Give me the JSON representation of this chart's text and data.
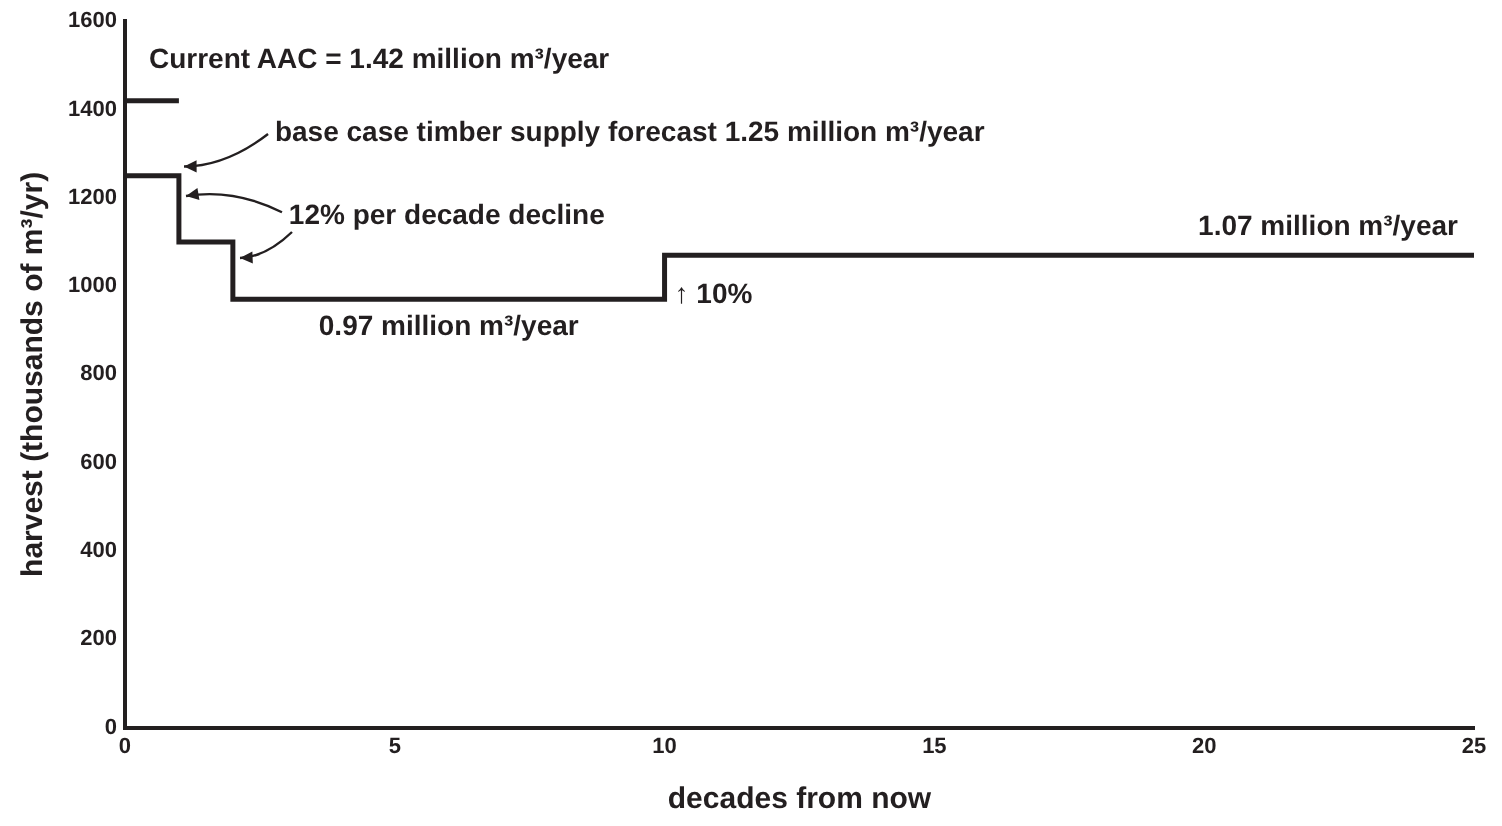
{
  "chart_data": {
    "type": "step",
    "xlabel": "decades from now",
    "ylabel": "harvest (thousands of m³/yr)",
    "xlim": [
      0,
      25
    ],
    "xticks": [
      0,
      5,
      10,
      15,
      20,
      25
    ],
    "ylim": [
      0,
      1600
    ],
    "yticks": [
      0,
      200,
      400,
      600,
      800,
      1000,
      1200,
      1400,
      1600
    ],
    "grid": false,
    "legend": false,
    "color": "#231f20",
    "series": [
      {
        "color": "#231f20",
        "x": [
          0,
          1
        ],
        "values": [
          1420,
          1420
        ]
      },
      {
        "color": "#231f20",
        "x": [
          0,
          1,
          2,
          10,
          25
        ],
        "values": [
          1250,
          1100,
          970,
          1070,
          1070
        ]
      }
    ],
    "annotations": [
      {
        "text": "Current AAC = 1.42 million m³/year",
        "x": 0,
        "y": 1420
      },
      "base case timber supply forecast 1.25 million m³/year",
      {
        "text": "12% per decade decline",
        "x": 2,
        "y": 1100
      },
      {
        "text": "0.97 million m³/year",
        "x": 6,
        "y": 970
      },
      {
        "text": "↑ 10%",
        "x": 10,
        "y": 1070
      },
      {
        "text": "1.07 million m³/year",
        "x": 25,
        "y": 1070
      }
    ]
  }
}
